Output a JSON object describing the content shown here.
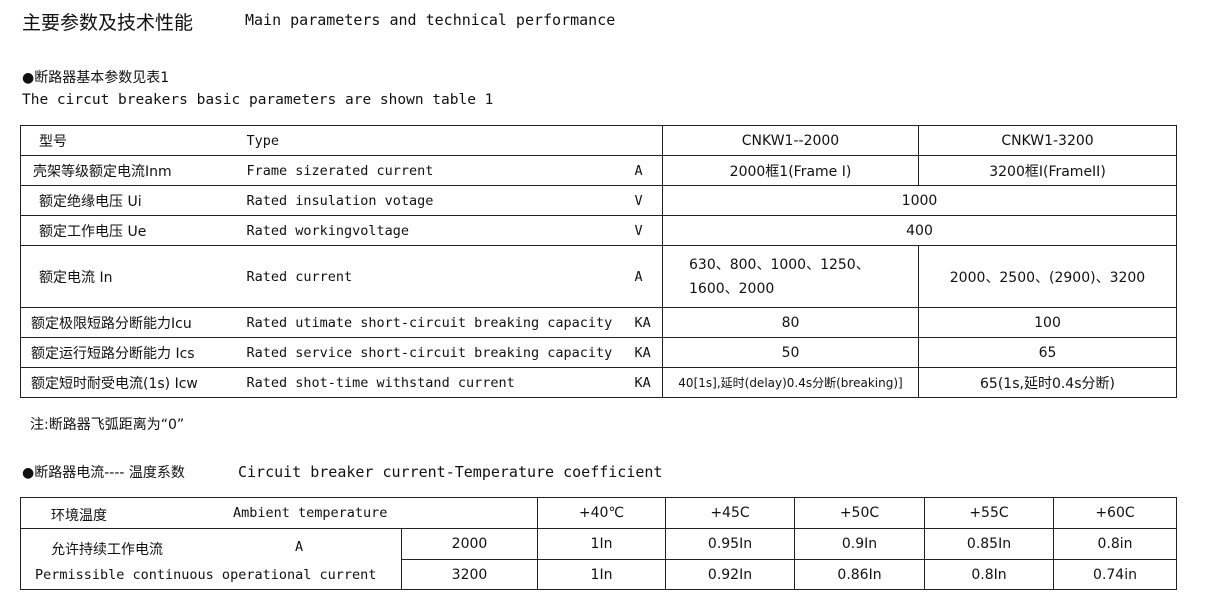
{
  "heading": {
    "zh": "主要参数及技术性能",
    "en": "Main parameters and technical performance"
  },
  "section1": {
    "title_zh": "●断路器基本参数见表1",
    "title_en": "The circut breakers basic parameters are shown table 1"
  },
  "table1": {
    "header": {
      "zh": "型号",
      "en": "Type",
      "models": [
        "CNKW1--2000",
        "CNKW1-3200"
      ]
    },
    "rows": [
      {
        "zh": "壳架等级额定电流Inm",
        "en": "Frame sizerated current",
        "unit": "A",
        "v1": "2000框1(Frame I)",
        "v2": "3200框I(FrameII)"
      },
      {
        "zh": "额定绝缘电压 Ui",
        "en": "Rated insulation votage",
        "unit": "V",
        "v": "1000"
      },
      {
        "zh": "额定工作电压 Ue",
        "en": "Rated workingvoltage",
        "unit": "V",
        "v": "400"
      },
      {
        "zh": "额定电流 In",
        "en": "Rated current",
        "unit": "A",
        "v1a": "630、800、1000、1250、",
        "v1b": "1600、2000",
        "v2": "2000、2500、(2900)、3200"
      },
      {
        "zh": "额定极限短路分断能力Icu",
        "en": "Rated utimate short-circuit breaking capacity",
        "unit": "KA",
        "v1": "80",
        "v2": "100"
      },
      {
        "zh": "额定运行短路分断能力 Ics",
        "en": "Rated service short-circuit breaking capacity",
        "unit": "KA",
        "v1": "50",
        "v2": "65"
      },
      {
        "zh": "额定短时耐受电流(1s) Icw",
        "en": "Rated shot-time withstand  current",
        "unit": "KA",
        "v1": "40[1s],延时(delay)0.4s分断(breaking)]",
        "v2": "65(1s,延时0.4s分断)"
      }
    ]
  },
  "note": "注:断路器飞弧距离为“0”",
  "section2": {
    "title_zh": "●断路器电流---- 温度系数",
    "title_en": "Circuit breaker current-Temperature coefficient"
  },
  "table2": {
    "header": {
      "zh": "环境温度",
      "en": "Ambient temperature",
      "temps": [
        "+40℃",
        "+45C",
        "+50C",
        "+55C",
        "+60C"
      ]
    },
    "label_zh": "允许持续工作电流",
    "unit": "A",
    "label_en": "Permissible continuous operational current",
    "rows": [
      {
        "rating": "2000",
        "values": [
          "1In",
          "0.95In",
          "0.9In",
          "0.85In",
          "0.8in"
        ]
      },
      {
        "rating": "3200",
        "values": [
          "1In",
          "0.92In",
          "0.86In",
          "0.8In",
          "0.74in"
        ]
      }
    ]
  }
}
